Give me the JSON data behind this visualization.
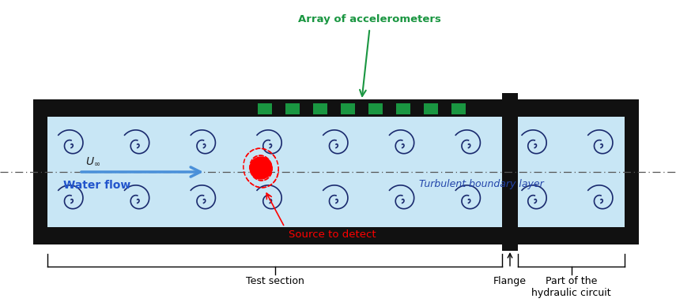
{
  "fig_width": 8.55,
  "fig_height": 3.88,
  "dpi": 100,
  "water_color": "#c8e6f5",
  "wall_color": "#111111",
  "accel_color": "#1a9641",
  "vortex_color": "#1a2a6e",
  "accel_label": "Array of accelerometers",
  "water_flow_label": "Water flow",
  "tbl_label": "Turbulent boundary layer",
  "source_label": "Source to detect",
  "test_section_label": "Test section",
  "flange_label": "Flange",
  "hydraulic_label": "Part of the\nhydraulic circuit"
}
